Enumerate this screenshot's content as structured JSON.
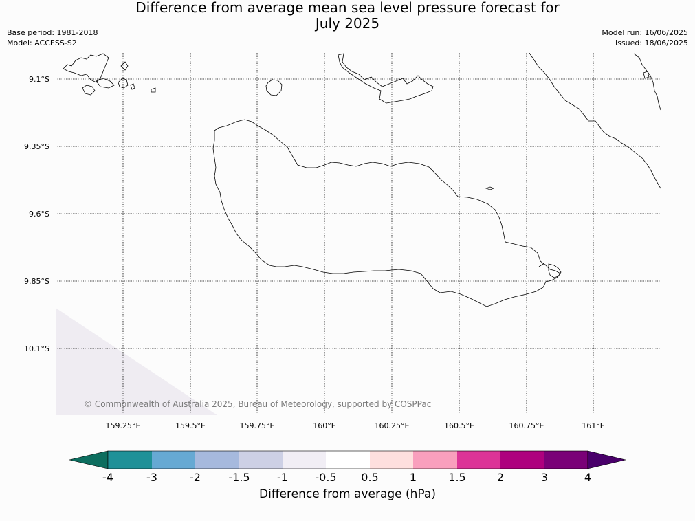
{
  "title_line1": "Difference from average mean sea level pressure forecast for",
  "title_line2": "July 2025",
  "meta_left": {
    "base_period": "Base period: 1981-2018",
    "model": "Model: ACCESS-S2"
  },
  "meta_right": {
    "model_run": "Model run: 16/06/2025",
    "issued": "Issued: 18/06/2025"
  },
  "map": {
    "lat_labels": [
      "9.1°S",
      "9.35°S",
      "9.6°S",
      "9.85°S",
      "10.1°S"
    ],
    "lon_labels": [
      "159.25°E",
      "159.5°E",
      "159.75°E",
      "160°E",
      "160.25°E",
      "160.5°E",
      "160.75°E",
      "161°E"
    ],
    "copyright": "© Commonwealth of Australia 2025, Bureau of Meteorology, supported by COSPPac",
    "fill_colors": {
      "background": "#fcfcfc",
      "low_anomaly_region": "#efecf2"
    }
  },
  "colorbar": {
    "title": "Difference from average (hPa)",
    "tick_labels": [
      "-4",
      "-3",
      "-2",
      "-1.5",
      "-1",
      "-0.5",
      "0.5",
      "1",
      "1.5",
      "2",
      "3",
      "4"
    ],
    "colors": [
      "#0d6e5f",
      "#1f9198",
      "#66a9d3",
      "#a6b9dd",
      "#cdd0e5",
      "#f1eef5",
      "#ffffff",
      "#fedfde",
      "#f99fbd",
      "#dc3497",
      "#ae017e",
      "#7a0177",
      "#49006a"
    ]
  }
}
